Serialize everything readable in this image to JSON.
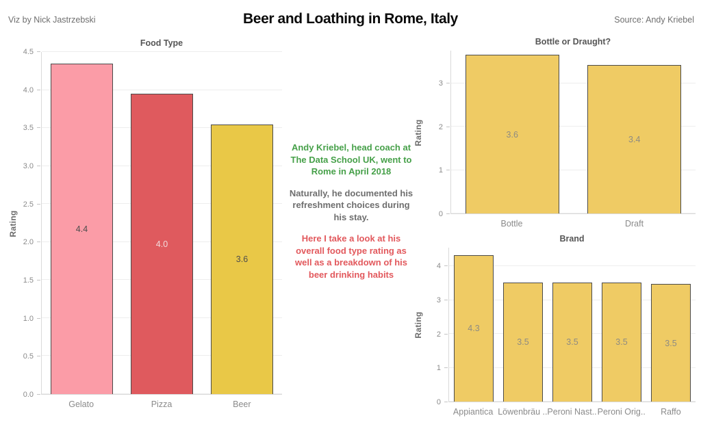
{
  "header": {
    "byline": "Viz by Nick Jastrzebski",
    "title": "Beer and Loathing in Rome, Italy",
    "source": "Source: Andy Kriebel"
  },
  "annotations": [
    {
      "name": "intro-note",
      "color": "#46A049",
      "text": "Andy Kriebel, head coach at\nThe Data School UK, went to\nRome in April 2018"
    },
    {
      "name": "middle-note",
      "color": "#6E6E6E",
      "text": "Naturally, he documented his\nrefreshment choices during\nhis stay."
    },
    {
      "name": "closing-note",
      "color": "#E2585C",
      "text": "Here I take a look at his\noverall food type rating as\nwell as a breakdown of his\nbeer drinking habits"
    }
  ],
  "chart_data": [
    {
      "id": "food",
      "type": "bar",
      "title": "Food Type",
      "ylabel": "Rating",
      "ymax": 4.5,
      "grid": true,
      "yticks": [
        {
          "v": 0,
          "label": "0.0"
        },
        {
          "v": 0.5,
          "label": "0.5"
        },
        {
          "v": 1,
          "label": "1.0"
        },
        {
          "v": 1.5,
          "label": "1.5"
        },
        {
          "v": 2,
          "label": "2.0"
        },
        {
          "v": 2.5,
          "label": "2.5"
        },
        {
          "v": 3,
          "label": "3.0"
        },
        {
          "v": 3.5,
          "label": "3.5"
        },
        {
          "v": 4,
          "label": "4.0"
        },
        {
          "v": 4.5,
          "label": "4.5"
        }
      ],
      "bars": [
        {
          "category": "Gelato",
          "value": 4.35,
          "label": "4.4",
          "color": "#FB9CA7",
          "label_color": "#4D4D4D"
        },
        {
          "category": "Pizza",
          "value": 3.95,
          "label": "4.0",
          "color": "#DF5A5E",
          "label_color": "#F2DCDD"
        },
        {
          "category": "Beer",
          "value": 3.55,
          "label": "3.6",
          "color": "#E9C847",
          "label_color": "#4D4D4D"
        }
      ]
    },
    {
      "id": "bottle",
      "type": "bar",
      "title": "Bottle or Draught?",
      "ylabel": "Rating",
      "ymax": 3.75,
      "grid": true,
      "yticks": [
        {
          "v": 0,
          "label": "0"
        },
        {
          "v": 1,
          "label": "1"
        },
        {
          "v": 2,
          "label": "2"
        },
        {
          "v": 3,
          "label": "3"
        }
      ],
      "bars": [
        {
          "category": "Bottle",
          "value": 3.65,
          "label": "3.6",
          "color": "#EFCB64",
          "label_color": "#8E8B82"
        },
        {
          "category": "Draft",
          "value": 3.42,
          "label": "3.4",
          "color": "#EFCB64",
          "label_color": "#8E8B82"
        }
      ]
    },
    {
      "id": "brand",
      "type": "bar",
      "title": "Brand",
      "ylabel": "Rating",
      "ymax": 4.55,
      "grid": true,
      "yticks": [
        {
          "v": 0,
          "label": "0"
        },
        {
          "v": 1,
          "label": "1"
        },
        {
          "v": 2,
          "label": "2"
        },
        {
          "v": 3,
          "label": "3"
        },
        {
          "v": 4,
          "label": "4"
        }
      ],
      "bars": [
        {
          "category": "Appiantica",
          "value": 4.33,
          "label": "4.3",
          "color": "#EFCB64",
          "label_color": "#8E8B82"
        },
        {
          "category": "Löwenbräu ..",
          "value": 3.52,
          "label": "3.5",
          "color": "#EFCB64",
          "label_color": "#8E8B82"
        },
        {
          "category": "Peroni Nast..",
          "value": 3.52,
          "label": "3.5",
          "color": "#EFCB64",
          "label_color": "#8E8B82"
        },
        {
          "category": "Peroni Orig..",
          "value": 3.52,
          "label": "3.5",
          "color": "#EFCB64",
          "label_color": "#8E8B82"
        },
        {
          "category": "Raffo",
          "value": 3.47,
          "label": "3.5",
          "color": "#EFCB64",
          "label_color": "#8E8B82"
        }
      ]
    }
  ]
}
